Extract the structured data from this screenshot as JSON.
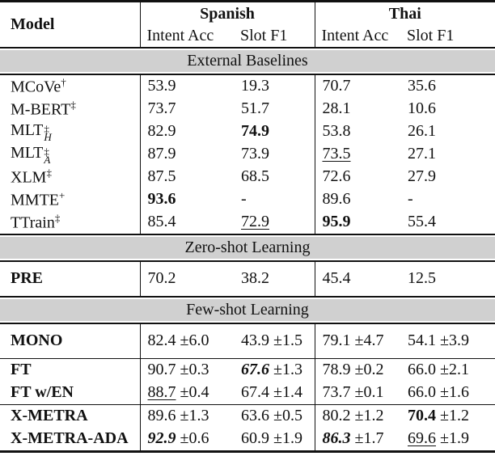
{
  "colors": {
    "band_bg": "#d0d0d0",
    "rule": "#111111",
    "text": "#111111"
  },
  "header": {
    "model": "Model",
    "group1": "Spanish",
    "group2": "Thai",
    "metrics": [
      "Intent Acc",
      "Slot F1"
    ]
  },
  "sections": [
    {
      "title": "External Baselines",
      "groups": [
        {
          "rows": [
            {
              "model": {
                "text": "MCoVe",
                "sup": "†"
              },
              "cells": [
                {
                  "v": "53.9"
                },
                {
                  "v": "19.3"
                },
                {
                  "v": "70.7"
                },
                {
                  "v": "35.6"
                }
              ]
            },
            {
              "model": {
                "text": "M-BERT",
                "sup": "‡"
              },
              "cells": [
                {
                  "v": "73.7"
                },
                {
                  "v": "51.7"
                },
                {
                  "v": "28.1"
                },
                {
                  "v": "10.6"
                }
              ]
            },
            {
              "model": {
                "text": "MLT",
                "sup": "‡",
                "sub": "H"
              },
              "cells": [
                {
                  "v": "82.9"
                },
                {
                  "v": "74.9",
                  "style": "bold"
                },
                {
                  "v": "53.8"
                },
                {
                  "v": "26.1"
                }
              ]
            },
            {
              "model": {
                "text": "MLT",
                "sup": "‡",
                "sub": "A"
              },
              "cells": [
                {
                  "v": "87.9"
                },
                {
                  "v": "73.9"
                },
                {
                  "v": "73.5",
                  "style": "underline"
                },
                {
                  "v": "27.1"
                }
              ]
            },
            {
              "model": {
                "text": "XLM",
                "sup": "‡"
              },
              "cells": [
                {
                  "v": "87.5"
                },
                {
                  "v": "68.5"
                },
                {
                  "v": "72.6"
                },
                {
                  "v": "27.9"
                }
              ]
            },
            {
              "model": {
                "text": "MMTE",
                "sup": "+"
              },
              "cells": [
                {
                  "v": "93.6",
                  "style": "bold"
                },
                {
                  "v": "-"
                },
                {
                  "v": "89.6"
                },
                {
                  "v": "-"
                }
              ]
            },
            {
              "model": {
                "text": "TTrain",
                "sup": "‡"
              },
              "cells": [
                {
                  "v": "85.4"
                },
                {
                  "v": "72.9",
                  "style": "underline"
                },
                {
                  "v": "95.9",
                  "style": "bold"
                },
                {
                  "v": "55.4"
                }
              ]
            }
          ]
        }
      ]
    },
    {
      "title": "Zero-shot Learning",
      "groups": [
        {
          "rows": [
            {
              "model": {
                "text": "PRE",
                "bold": true
              },
              "cells": [
                {
                  "v": "70.2"
                },
                {
                  "v": "38.2"
                },
                {
                  "v": "45.4"
                },
                {
                  "v": "12.5"
                }
              ]
            }
          ]
        }
      ]
    },
    {
      "title": "Few-shot Learning",
      "groups": [
        {
          "rows": [
            {
              "model": {
                "text": "MONO",
                "bold": true
              },
              "cells": [
                {
                  "v": "82.4",
                  "err": "±6.0"
                },
                {
                  "v": "43.9",
                  "err": "±1.5"
                },
                {
                  "v": "79.1",
                  "err": "±4.7"
                },
                {
                  "v": "54.1",
                  "err": "±3.9"
                }
              ]
            }
          ]
        },
        {
          "rows": [
            {
              "model": {
                "text": "FT",
                "bold": true
              },
              "cells": [
                {
                  "v": "90.7",
                  "err": "±0.3"
                },
                {
                  "v": "67.6",
                  "err": "±1.3",
                  "style": "bold-italic"
                },
                {
                  "v": "78.9",
                  "err": "±0.2"
                },
                {
                  "v": "66.0",
                  "err": "±2.1"
                }
              ]
            },
            {
              "model": {
                "text": "FT w/EN",
                "bold": true
              },
              "cells": [
                {
                  "v": "88.7",
                  "err": "±0.4",
                  "style": "underline"
                },
                {
                  "v": "67.4",
                  "err": "±1.4"
                },
                {
                  "v": "73.7",
                  "err": "±0.1"
                },
                {
                  "v": "66.0",
                  "err": "±1.6"
                }
              ]
            }
          ]
        },
        {
          "rows": [
            {
              "model": {
                "text": "X-METRA",
                "bold": true
              },
              "cells": [
                {
                  "v": "89.6",
                  "err": "±1.3"
                },
                {
                  "v": "63.6",
                  "err": "±0.5"
                },
                {
                  "v": "80.2",
                  "err": "±1.2"
                },
                {
                  "v": "70.4",
                  "err": "±1.2",
                  "style": "bold"
                }
              ]
            },
            {
              "model": {
                "text": "X-METRA-ADA",
                "bold": true
              },
              "cells": [
                {
                  "v": "92.9",
                  "err": "±0.6",
                  "style": "bold-italic"
                },
                {
                  "v": "60.9",
                  "err": "±1.9"
                },
                {
                  "v": "86.3",
                  "err": "±1.7",
                  "style": "bold-italic"
                },
                {
                  "v": "69.6",
                  "err": "±1.9",
                  "style": "underline"
                }
              ]
            }
          ]
        }
      ]
    }
  ]
}
